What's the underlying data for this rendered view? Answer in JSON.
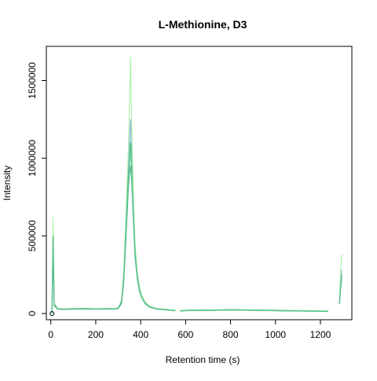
{
  "chart_data": {
    "type": "line",
    "title": "L-Methionine, D3",
    "xlabel": "Retention time (s)",
    "ylabel": "Intensity",
    "xlim": [
      -20,
      1340
    ],
    "ylim": [
      -40000,
      1720000
    ],
    "x_ticks": [
      0,
      200,
      400,
      600,
      800,
      1000,
      1200
    ],
    "x_tick_labels": [
      "0",
      "200",
      "400",
      "600",
      "800",
      "1000",
      "1200"
    ],
    "y_ticks": [
      0,
      500000,
      1000000,
      1500000
    ],
    "y_tick_labels": [
      "0",
      "500000",
      "1000000",
      "1500000"
    ],
    "grid": false,
    "legend": "none",
    "colors": [
      "#7b9fd6",
      "#a2d8e4",
      "#2f9d6a",
      "#9ff09a",
      "#2eb04e",
      "#65c4a7"
    ],
    "marker_point": {
      "x": 5,
      "y": 0
    },
    "gaps": [
      [
        555,
        575
      ],
      [
        1235,
        1285
      ]
    ],
    "series": [
      {
        "color": "#7b9fd6",
        "x": [
          5,
          10,
          15,
          30,
          60,
          100,
          150,
          200,
          250,
          280,
          300,
          315,
          325,
          335,
          345,
          350,
          355,
          360,
          365,
          370,
          375,
          385,
          395,
          405,
          420,
          440,
          470,
          500,
          540,
          555,
          575,
          600,
          650,
          700,
          750,
          800,
          850,
          900,
          950,
          1000,
          1050,
          1100,
          1150,
          1200,
          1235,
          1285,
          1290,
          1295
        ],
        "y": [
          0,
          450000,
          60000,
          30000,
          28000,
          30000,
          32000,
          30000,
          31000,
          30000,
          35000,
          80000,
          250000,
          600000,
          950000,
          1100000,
          1250000,
          1050000,
          800000,
          600000,
          420000,
          250000,
          160000,
          110000,
          70000,
          45000,
          32000,
          28000,
          22000,
          20000,
          18000,
          20000,
          22000,
          21000,
          23000,
          25000,
          24000,
          22000,
          21000,
          20000,
          19000,
          18000,
          17000,
          16000,
          15000,
          80000,
          200000,
          280000
        ]
      },
      {
        "color": "#a2d8e4",
        "x": [
          5,
          10,
          15,
          30,
          60,
          100,
          150,
          200,
          250,
          280,
          300,
          315,
          325,
          335,
          345,
          350,
          355,
          360,
          365,
          370,
          375,
          385,
          395,
          405,
          420,
          440,
          470,
          500,
          540,
          555,
          575,
          600,
          650,
          700,
          750,
          800,
          850,
          900,
          950,
          1000,
          1050,
          1100,
          1150,
          1200,
          1235,
          1285,
          1290,
          1295
        ],
        "y": [
          0,
          420000,
          55000,
          29000,
          27000,
          29000,
          30000,
          29000,
          30000,
          29000,
          33000,
          70000,
          230000,
          560000,
          900000,
          1050000,
          1150000,
          980000,
          760000,
          580000,
          400000,
          240000,
          150000,
          105000,
          65000,
          42000,
          30000,
          26000,
          21000,
          19000,
          17000,
          19000,
          21000,
          20000,
          22000,
          23000,
          23000,
          21000,
          20000,
          19000,
          18000,
          17000,
          16000,
          15000,
          14000,
          70000,
          190000,
          260000
        ]
      },
      {
        "color": "#2f9d6a",
        "x": [
          5,
          10,
          15,
          30,
          60,
          100,
          150,
          200,
          250,
          280,
          300,
          315,
          325,
          335,
          345,
          350,
          355,
          360,
          365,
          370,
          375,
          385,
          395,
          405,
          420,
          440,
          470,
          500,
          540,
          555,
          575,
          600,
          650,
          700,
          750,
          800,
          850,
          900,
          950,
          1000,
          1050,
          1100,
          1150,
          1200,
          1235,
          1285,
          1290,
          1295
        ],
        "y": [
          0,
          400000,
          50000,
          28000,
          26000,
          28000,
          29000,
          28000,
          29000,
          28000,
          32000,
          65000,
          210000,
          500000,
          800000,
          900000,
          950000,
          850000,
          680000,
          520000,
          360000,
          220000,
          140000,
          100000,
          62000,
          40000,
          29000,
          25000,
          20000,
          18000,
          16000,
          18000,
          20000,
          19000,
          21000,
          22000,
          22000,
          20000,
          19000,
          18000,
          17000,
          16000,
          15000,
          14000,
          13000,
          60000,
          160000,
          220000
        ]
      },
      {
        "color": "#9ff09a",
        "x": [
          5,
          10,
          15,
          30,
          60,
          100,
          150,
          200,
          250,
          280,
          300,
          315,
          325,
          335,
          345,
          350,
          355,
          360,
          365,
          370,
          375,
          385,
          395,
          405,
          420,
          440,
          470,
          500,
          540,
          555,
          575,
          600,
          650,
          700,
          750,
          800,
          850,
          900,
          950,
          1000,
          1050,
          1100,
          1150,
          1200,
          1235,
          1285,
          1290,
          1295
        ],
        "y": [
          0,
          620000,
          70000,
          32000,
          30000,
          32000,
          34000,
          31000,
          33000,
          31000,
          38000,
          90000,
          280000,
          650000,
          1050000,
          1350000,
          1650000,
          1200000,
          900000,
          650000,
          450000,
          270000,
          170000,
          120000,
          75000,
          48000,
          34000,
          30000,
          24000,
          22000,
          20000,
          22000,
          24000,
          23000,
          25000,
          26000,
          26000,
          24000,
          23000,
          22000,
          21000,
          20000,
          19000,
          18000,
          17000,
          100000,
          280000,
          380000
        ]
      },
      {
        "color": "#2eb04e",
        "x": [
          5,
          10,
          15,
          30,
          60,
          100,
          150,
          200,
          250,
          280,
          300,
          315,
          325,
          335,
          345,
          350,
          355,
          360,
          365,
          370,
          375,
          385,
          395,
          405,
          420,
          440,
          470,
          500,
          540,
          555,
          575,
          600,
          650,
          700,
          750,
          800,
          850,
          900,
          950,
          1000,
          1050,
          1100,
          1150,
          1200,
          1235,
          1285,
          1290,
          1295
        ],
        "y": [
          0,
          500000,
          58000,
          30000,
          28000,
          30000,
          31000,
          29000,
          31000,
          30000,
          34000,
          75000,
          240000,
          560000,
          880000,
          1000000,
          1100000,
          920000,
          720000,
          550000,
          380000,
          230000,
          145000,
          102000,
          64000,
          41000,
          30000,
          26000,
          21000,
          19000,
          17000,
          19000,
          21000,
          20000,
          22000,
          24000,
          23000,
          21000,
          20000,
          19000,
          18000,
          17000,
          16000,
          15000,
          14000,
          65000,
          180000,
          250000
        ]
      },
      {
        "color": "#65c4a7",
        "x": [
          5,
          10,
          15,
          30,
          60,
          100,
          150,
          200,
          250,
          280,
          300,
          315,
          325,
          335,
          345,
          350,
          355,
          360,
          365,
          370,
          375,
          385,
          395,
          405,
          420,
          440,
          470,
          500,
          540,
          555,
          575,
          600,
          650,
          700,
          750,
          800,
          850,
          900,
          950,
          1000,
          1050,
          1100,
          1150,
          1200,
          1235,
          1285,
          1290,
          1295
        ],
        "y": [
          0,
          460000,
          54000,
          29000,
          27000,
          29000,
          30000,
          28000,
          30000,
          29000,
          33000,
          72000,
          230000,
          530000,
          840000,
          960000,
          1050000,
          890000,
          700000,
          530000,
          370000,
          225000,
          142000,
          100000,
          63000,
          40000,
          29000,
          25000,
          20000,
          18000,
          16000,
          18000,
          20000,
          19000,
          21000,
          23000,
          22000,
          20000,
          19000,
          18000,
          17000,
          16000,
          15000,
          14000,
          13000,
          62000,
          170000,
          240000
        ]
      }
    ]
  }
}
